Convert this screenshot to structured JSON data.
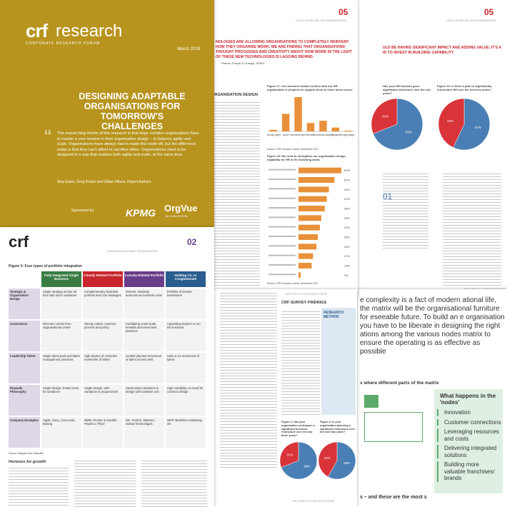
{
  "cover": {
    "brand": "crf",
    "brand_suffix": "research",
    "org": "CORPORATE RESEARCH FORUM",
    "date": "March 2018",
    "title": "DESIGNING ADAPTABLE ORGANISATIONS FOR TOMORROW'S CHALLENGES",
    "quote": "The overarching theme of this research is that large complex organisations have to master a core tension in their organisation design – to balance agility and scale. Organisations have always had to make this trade-off, but the difference today is that they can't afford to sacrifice either. Organisations need to be designed in a way that enables both agility and scale, at the same time.",
    "authors": "Amy Eaton, Greg Kester and Gillian Pillans, Report Authors",
    "sponsored": "Sponsored by:",
    "sponsor1": "KPMG",
    "sponsor2": "OrgVue",
    "sponsor2_sub": "by CONCENTRA"
  },
  "page_b": {
    "number": "05",
    "section": "CONCLUSIONS AND RECOMMENDATIONS",
    "pull_quote": "NOLOGIES ARE ALLOWING ORGANISATIONS TO COMPLETELY REINVENT HOW THEY ORGANISE WORK. WE ARE FINDING THAT ORGANISATIONS' THOUGHT PROCESSES AND CREATIVITY ABOUT HOW WORK IN THE LIGHT OF THESE NEW TECHNOLOGIES IS LAGGING BEHIND.",
    "pull_quote_source": "Partner, People & Change, KPMG",
    "heading": "ORGANISATION DESIGN",
    "fig17": {
      "title": "Figure 17: Our business leaders believe that our HR organisation is prepared to support them to solve these issues",
      "categories": [
        "Strongly agree",
        "Agree",
        "Somewhat agree",
        "Neutral",
        "Somewhat disagree",
        "Disagree",
        "Strongly disagree"
      ],
      "values": [
        2,
        23,
        45,
        11,
        14,
        5,
        1
      ],
      "color": "#e8913a",
      "source": "Source: CRF member survey, December 2017"
    },
    "fig18": {
      "title": "Figure 18: We need to strengthen our organisation design capability for HR in the following areas",
      "values": [
        62,
        52,
        44,
        41,
        38,
        33,
        31,
        28,
        26,
        21,
        19,
        3
      ],
      "value_labels": [
        "62%",
        "52%",
        "44%",
        "41%",
        "38%",
        "33%",
        "31%",
        "28%",
        "26%",
        "21%",
        "19%",
        "3%"
      ],
      "color": "#e8913a",
      "source": "Source: CRF member survey, December 2017"
    },
    "footer": "RETURN TO CONTENTS PAGE"
  },
  "page_c": {
    "number": "05",
    "section": "CONCLUSIONS AND RECOMMENDATIONS",
    "pull_quote": "ULD BE HAVING SIGNIFICANT IMPACT AND ADDING VALUE. IT'S A ID TO INVEST IN BUILDING CAPABILITY.",
    "pie_a": {
      "title": "Has your HR function gone significant restructure over the two years?",
      "values": [
        69,
        31
      ],
      "value_labels": [
        "69%",
        "31%"
      ]
    },
    "pie_b": {
      "title": "Figure 19: Is there a plan to significantly restructure HR over the next two years?",
      "values": [
        57,
        43
      ],
      "value_labels": [
        "57%",
        "43%"
      ]
    },
    "colors": [
      "#4a7fb5",
      "#d9343a"
    ],
    "section_number": "01",
    "footer": "RETURN TO CONTENTS PAGE"
  },
  "page_d": {
    "brand": "crf",
    "number": "02",
    "section": "DESIGNING ADAPTABLE ORGANISATIONS",
    "table": {
      "title": "Figure 3: Four types of portfolio integration",
      "columns": [
        "Fully Integrated Single Business",
        "Closely Related Portfolio",
        "Loosely Related Portfolio",
        "Holding Co. or Conglomerate"
      ],
      "rows": [
        [
          "Strategic & Organisation Design",
          "Single strategy across all BUs with minor variations",
          "Complementary business portfolio and core strategies",
          "Diverse, relatively autonomous business units",
          "Portfolio of diverse businesses"
        ],
        [
          "Governance",
          "Direction comes from organisational centre",
          "Strong culture, common process and policy",
          "Facilitating cross-scale benefits and some best practices",
          "Appointing leaders to run the business"
        ],
        [
          "Leadership Talent",
          "Single talent pool and talent management practices",
          "High degree of cross-BU movement of talent",
          "Limited planned movement of talent across units",
          "Little or no movement of talent"
        ],
        [
          "Rewards Philosophy",
          "Single design, limited room for variations",
          "Single design, with variations in programmes",
          "Harmonised variations in design with business unit",
          "High variability, no need for common design"
        ],
        [
          "Company Examples",
          "Apple, Sony, Coca-Cola, Boeing",
          "BMW, Procter & Gamble, PepsiCo, Pfizer",
          "GE, Textron, Walmart, United Technologies",
          "WPP, Berkshire Hathaway, 3G"
        ]
      ],
      "source": "Source: Adapted from Galbraith"
    },
    "heading": "Horizons for growth"
  },
  "page_e": {
    "heading": "CRF SURVEY FINDINGS",
    "box_title": "RESEARCH METHOD",
    "fig2": {
      "title": "Figure 2: Has your organisation undergone a significant business restructure over the last three years?",
      "values": [
        69,
        31
      ],
      "value_labels": [
        "69%",
        "31%"
      ]
    },
    "fig3": {
      "title": "Figure 3: Is your organisation planning a significant restructure over the next two years?",
      "values": [
        58,
        42
      ],
      "value_labels": [
        "58%",
        "42%"
      ]
    },
    "colors": [
      "#4a7fb5",
      "#d9343a"
    ],
    "footer": "RETURN TO CONTENTS PAGE"
  },
  "page_f": {
    "intro": "e complexity is a fact of modern ational life, the matrix will be the organisational furniture for eseeable future. To build an e organisation you have to be liberate in designing the right ations among the various nodes matrix to ensure the operating is as effective as possible",
    "heading": "s where different parts of the matrix",
    "box_title": "What happens in the 'nodes'",
    "items": [
      "Innovation",
      "Customer connections",
      "Leveraging resources and costs",
      "Delivering integrated solutions",
      "Building more valuable franchises/ brands"
    ],
    "closing": "s – and these are the most s"
  }
}
